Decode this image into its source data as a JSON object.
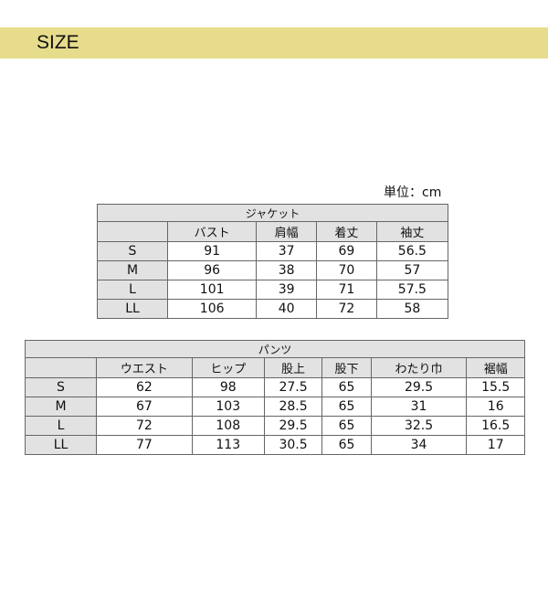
{
  "header": {
    "title": "SIZE",
    "color": "#e6dc8c"
  },
  "unit": "単位：cm",
  "jacket": {
    "title": "ジャケット",
    "columns": [
      "バスト",
      "肩幅",
      "着丈",
      "袖丈"
    ],
    "rows": [
      {
        "size": "S",
        "values": [
          "91",
          "37",
          "69",
          "56.5"
        ]
      },
      {
        "size": "M",
        "values": [
          "96",
          "38",
          "70",
          "57"
        ]
      },
      {
        "size": "L",
        "values": [
          "101",
          "39",
          "71",
          "57.5"
        ]
      },
      {
        "size": "LL",
        "values": [
          "106",
          "40",
          "72",
          "58"
        ]
      }
    ]
  },
  "pants": {
    "title": "パンツ",
    "columns": [
      "ウエスト",
      "ヒップ",
      "股上",
      "股下",
      "わたり巾",
      "裾幅"
    ],
    "rows": [
      {
        "size": "S",
        "values": [
          "62",
          "98",
          "27.5",
          "65",
          "29.5",
          "15.5"
        ]
      },
      {
        "size": "M",
        "values": [
          "67",
          "103",
          "28.5",
          "65",
          "31",
          "16"
        ]
      },
      {
        "size": "L",
        "values": [
          "72",
          "108",
          "29.5",
          "65",
          "32.5",
          "16.5"
        ]
      },
      {
        "size": "LL",
        "values": [
          "77",
          "113",
          "30.5",
          "65",
          "34",
          "17"
        ]
      }
    ]
  }
}
